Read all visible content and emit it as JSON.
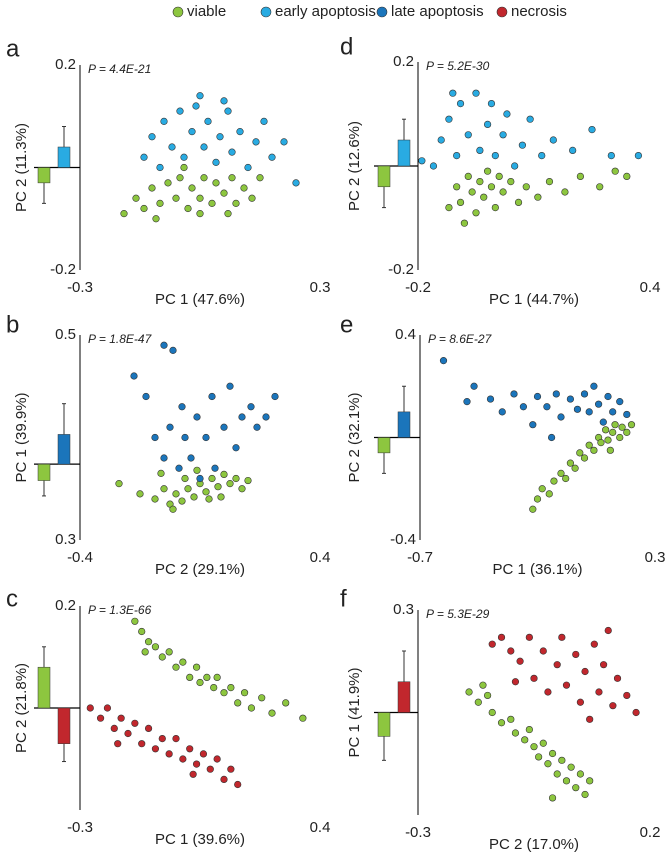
{
  "legend": [
    {
      "name": "viable",
      "color": "#8dc63f"
    },
    {
      "name": "early apoptosis",
      "color": "#29abe2"
    },
    {
      "name": "late apoptosis",
      "color": "#1b75bb"
    },
    {
      "name": "necrosis",
      "color": "#c1272d"
    }
  ],
  "chart_data": [
    {
      "type": "scatter",
      "label": "a",
      "annotation": "P = 4.4E-21",
      "xlabel": "PC 1 (47.6%)",
      "ylabel": "PC 2 (11.3%)",
      "xlim": [
        -0.3,
        0.3
      ],
      "ylim": [
        -0.2,
        0.2
      ],
      "xticks": [
        -0.3,
        0.3
      ],
      "yticks": [
        -0.2,
        0.2
      ],
      "series": [
        {
          "color": "#8dc63f",
          "mean": -0.03,
          "error": 0.04,
          "x": [
            -0.19,
            -0.16,
            -0.14,
            -0.12,
            -0.1,
            -0.08,
            -0.06,
            -0.05,
            -0.03,
            -0.02,
            0,
            0.01,
            0.03,
            0.04,
            0.06,
            0.08,
            0.09,
            0.11,
            0.13,
            -0.11,
            0.0,
            0.07,
            -0.04,
            0.15
          ],
          "y": [
            -0.09,
            -0.06,
            -0.08,
            -0.04,
            -0.07,
            -0.03,
            -0.06,
            -0.02,
            -0.08,
            -0.04,
            -0.06,
            -0.02,
            -0.07,
            -0.03,
            -0.05,
            -0.02,
            -0.07,
            -0.04,
            -0.06,
            -0.1,
            -0.09,
            -0.09,
            0.0,
            -0.02
          ]
        },
        {
          "color": "#29abe2",
          "mean": 0.04,
          "error": 0.04,
          "x": [
            -0.14,
            -0.12,
            -0.1,
            -0.09,
            -0.07,
            -0.05,
            -0.04,
            -0.02,
            0,
            0.01,
            0.02,
            0.04,
            0.05,
            0.07,
            0.08,
            0.1,
            0.12,
            0.14,
            0.16,
            0.18,
            0.21,
            0.24,
            -0.01,
            0.06
          ],
          "y": [
            0.02,
            0.06,
            0.0,
            0.09,
            0.04,
            0.11,
            0.02,
            0.07,
            0.14,
            0.04,
            0.09,
            0.01,
            0.06,
            0.11,
            0.03,
            0.07,
            0.0,
            0.05,
            0.09,
            0.02,
            0.05,
            -0.03,
            0.12,
            0.13
          ]
        }
      ]
    },
    {
      "type": "scatter",
      "label": "b",
      "annotation": "P = 1.8E-47",
      "xlabel": "PC 2 (29.1%)",
      "ylabel": "PC 1 (39.9%)",
      "xlim": [
        -0.4,
        0.4
      ],
      "ylim": [
        0.3,
        0.5
      ],
      "xticks": [
        -0.4,
        0.4
      ],
      "yticks": [
        0.3,
        0.5
      ],
      "series": [
        {
          "color": "#8dc63f",
          "mean": -0.016,
          "error": 0.015,
          "x": [
            -0.27,
            -0.2,
            -0.15,
            -0.12,
            -0.1,
            -0.08,
            -0.06,
            -0.04,
            -0.02,
            0,
            0.02,
            0.04,
            0.06,
            0.08,
            0.1,
            0.12,
            0.14,
            -0.13,
            -0.05,
            0.03,
            0.16,
            -0.09,
            -0.01,
            0.07
          ],
          "y": [
            0.355,
            0.345,
            0.34,
            0.35,
            0.335,
            0.345,
            0.338,
            0.35,
            0.342,
            0.355,
            0.347,
            0.36,
            0.352,
            0.364,
            0.355,
            0.36,
            0.35,
            0.365,
            0.36,
            0.34,
            0.358,
            0.33,
            0.368,
            0.342
          ]
        },
        {
          "color": "#1b75bb",
          "mean": 0.029,
          "error": 0.03,
          "x": [
            -0.22,
            -0.18,
            -0.12,
            -0.09,
            -0.15,
            -0.12,
            -0.1,
            -0.07,
            -0.05,
            -0.03,
            -0.01,
            0,
            0.02,
            0.04,
            0.05,
            0.08,
            0.1,
            0.12,
            0.14,
            0.17,
            0.19,
            0.22,
            0.25,
            -0.06
          ],
          "y": [
            0.46,
            0.44,
            0.49,
            0.485,
            0.4,
            0.38,
            0.41,
            0.37,
            0.4,
            0.38,
            0.42,
            0.36,
            0.4,
            0.44,
            0.37,
            0.41,
            0.45,
            0.39,
            0.42,
            0.43,
            0.41,
            0.42,
            0.44,
            0.43
          ]
        }
      ]
    },
    {
      "type": "scatter",
      "label": "c",
      "annotation": "P = 1.3E-66",
      "xlabel": "PC 1 (39.6%)",
      "ylabel": "PC 2 (21.8%)",
      "xlim": [
        -0.3,
        0.4
      ],
      "ylim": [
        -0.2,
        0.2
      ],
      "xticks": [
        -0.3,
        0.4
      ],
      "yticks": [
        0.2
      ],
      "series": [
        {
          "color": "#8dc63f",
          "mean": 0.08,
          "error": 0.04,
          "x": [
            -0.14,
            -0.12,
            -0.1,
            -0.11,
            -0.08,
            -0.06,
            -0.04,
            -0.02,
            0,
            0.02,
            0.04,
            0.05,
            0.07,
            0.09,
            0.1,
            0.12,
            0.14,
            0.16,
            0.18,
            0.2,
            0.23,
            0.26,
            0.3,
            0.35
          ],
          "y": [
            0.17,
            0.15,
            0.13,
            0.11,
            0.12,
            0.1,
            0.11,
            0.08,
            0.09,
            0.06,
            0.08,
            0.05,
            0.06,
            0.04,
            0.06,
            0.03,
            0.04,
            0.01,
            0.03,
            0.0,
            0.02,
            -0.01,
            0.01,
            -0.02
          ]
        },
        {
          "color": "#c1272d",
          "mean": -0.07,
          "error": 0.035,
          "x": [
            -0.27,
            -0.24,
            -0.22,
            -0.2,
            -0.18,
            -0.16,
            -0.14,
            -0.12,
            -0.1,
            -0.08,
            -0.06,
            -0.04,
            -0.02,
            0,
            0.02,
            0.04,
            0.06,
            0.08,
            0.1,
            0.12,
            0.14,
            0.16,
            -0.19,
            0.03
          ],
          "y": [
            0.0,
            -0.02,
            0.0,
            -0.04,
            -0.02,
            -0.05,
            -0.03,
            -0.07,
            -0.04,
            -0.08,
            -0.06,
            -0.09,
            -0.06,
            -0.1,
            -0.08,
            -0.11,
            -0.09,
            -0.12,
            -0.1,
            -0.14,
            -0.12,
            -0.15,
            -0.07,
            -0.13
          ]
        }
      ]
    },
    {
      "type": "scatter",
      "label": "d",
      "annotation": "P = 5.2E-30",
      "xlabel": "PC 1 (44.7%)",
      "ylabel": "PC 2 (12.6%)",
      "xlim": [
        -0.2,
        0.4
      ],
      "ylim": [
        -0.2,
        0.2
      ],
      "xticks": [
        -0.2,
        0.4
      ],
      "yticks": [
        -0.2,
        0.2
      ],
      "series": [
        {
          "color": "#8dc63f",
          "mean": -0.04,
          "error": 0.04,
          "x": [
            -0.12,
            -0.1,
            -0.09,
            -0.07,
            -0.06,
            -0.05,
            -0.04,
            -0.03,
            -0.02,
            -0.01,
            0,
            0.01,
            0.02,
            0.04,
            0.06,
            0.08,
            0.11,
            0.14,
            0.18,
            0.22,
            0.27,
            0.31,
            0.34,
            -0.08
          ],
          "y": [
            -0.08,
            -0.04,
            -0.07,
            -0.02,
            -0.05,
            -0.09,
            -0.03,
            -0.06,
            -0.01,
            -0.04,
            -0.08,
            -0.02,
            -0.05,
            -0.03,
            -0.07,
            -0.04,
            -0.06,
            -0.03,
            -0.05,
            -0.02,
            -0.04,
            -0.01,
            -0.02,
            -0.11
          ]
        },
        {
          "color": "#29abe2",
          "mean": 0.05,
          "error": 0.04,
          "x": [
            -0.19,
            -0.16,
            -0.14,
            -0.12,
            -0.1,
            -0.09,
            -0.07,
            -0.05,
            -0.04,
            -0.02,
            -0.01,
            0,
            0.02,
            0.03,
            0.05,
            0.07,
            0.09,
            0.12,
            0.15,
            0.2,
            0.25,
            0.3,
            0.37,
            -0.11
          ],
          "y": [
            0.01,
            0.0,
            0.05,
            0.09,
            0.02,
            0.12,
            0.06,
            0.14,
            0.03,
            0.08,
            0.12,
            0.02,
            0.06,
            0.1,
            0.0,
            0.04,
            0.09,
            0.02,
            0.05,
            0.03,
            0.07,
            0.02,
            0.02,
            0.14
          ]
        }
      ]
    },
    {
      "type": "scatter",
      "label": "e",
      "annotation": "P = 8.6E-27",
      "xlabel": "PC 1 (36.1%)",
      "ylabel": "PC 2 (32.1%)",
      "xlim": [
        -0.7,
        0.3
      ],
      "ylim": [
        -0.4,
        0.4
      ],
      "xticks": [
        -0.7,
        0.3
      ],
      "yticks": [
        -0.4,
        0.4
      ],
      "series": [
        {
          "color": "#8dc63f",
          "mean": -0.06,
          "error": 0.08,
          "x": [
            -0.22,
            -0.2,
            -0.18,
            -0.15,
            -0.13,
            -0.1,
            -0.08,
            -0.06,
            -0.04,
            -0.02,
            0,
            0.02,
            0.04,
            0.06,
            0.07,
            0.09,
            0.1,
            0.12,
            0.13,
            0.15,
            0.16,
            0.18,
            0.2,
            0.11
          ],
          "y": [
            -0.28,
            -0.24,
            -0.2,
            -0.22,
            -0.17,
            -0.14,
            -0.16,
            -0.1,
            -0.12,
            -0.06,
            -0.08,
            -0.03,
            -0.05,
            0.0,
            -0.02,
            0.03,
            -0.01,
            0.02,
            0.05,
            0.0,
            0.04,
            0.02,
            0.05,
            -0.05
          ]
        },
        {
          "color": "#1b75bb",
          "mean": 0.1,
          "error": 0.1,
          "x": [
            -0.6,
            -0.47,
            -0.5,
            -0.4,
            -0.35,
            -0.3,
            -0.26,
            -0.22,
            -0.2,
            -0.16,
            -0.12,
            -0.1,
            -0.06,
            -0.03,
            0,
            0.02,
            0.04,
            0.06,
            0.08,
            0.1,
            0.12,
            0.15,
            0.18,
            -0.14
          ],
          "y": [
            0.3,
            0.2,
            0.14,
            0.15,
            0.1,
            0.17,
            0.12,
            0.05,
            0.16,
            0.12,
            0.17,
            0.08,
            0.15,
            0.11,
            0.17,
            0.1,
            0.2,
            0.13,
            0.06,
            0.16,
            0.1,
            0.14,
            0.09,
            0.0
          ]
        }
      ]
    },
    {
      "type": "scatter",
      "label": "f",
      "annotation": "P = 5.3E-29",
      "xlabel": "PC 2 (17.0%)",
      "ylabel": "PC 1 (41.9%)",
      "xlim": [
        -0.3,
        0.2
      ],
      "ylim": [
        -0.3,
        0.3
      ],
      "xticks": [
        -0.3,
        0.2
      ],
      "yticks": [
        0.3
      ],
      "series": [
        {
          "color": "#8dc63f",
          "mean": -0.07,
          "error": 0.07,
          "x": [
            -0.19,
            -0.17,
            -0.15,
            -0.14,
            -0.12,
            -0.1,
            -0.09,
            -0.07,
            -0.06,
            -0.05,
            -0.04,
            -0.03,
            -0.02,
            -0.01,
            0,
            0.01,
            0.02,
            0.03,
            0.04,
            0.05,
            0.06,
            -0.01,
            -0.16,
            0.07
          ],
          "y": [
            0.06,
            0.03,
            0.05,
            0.0,
            -0.03,
            -0.02,
            -0.06,
            -0.08,
            -0.05,
            -0.1,
            -0.13,
            -0.09,
            -0.15,
            -0.12,
            -0.18,
            -0.14,
            -0.2,
            -0.16,
            -0.22,
            -0.18,
            -0.24,
            -0.25,
            0.08,
            -0.2
          ]
        },
        {
          "color": "#c1272d",
          "mean": 0.09,
          "error": 0.09,
          "x": [
            -0.14,
            -0.12,
            -0.1,
            -0.08,
            -0.06,
            -0.05,
            -0.03,
            -0.02,
            0,
            0.01,
            0.02,
            0.04,
            0.05,
            0.06,
            0.08,
            0.09,
            0.1,
            0.12,
            0.13,
            0.15,
            0.17,
            0.11,
            -0.09,
            0.07
          ],
          "y": [
            0.2,
            0.22,
            0.18,
            0.15,
            0.22,
            0.1,
            0.18,
            0.06,
            0.14,
            0.22,
            0.08,
            0.17,
            0.03,
            0.12,
            0.2,
            0.06,
            0.14,
            0.02,
            0.1,
            0.05,
            0.0,
            0.24,
            0.09,
            -0.02
          ]
        }
      ]
    }
  ]
}
